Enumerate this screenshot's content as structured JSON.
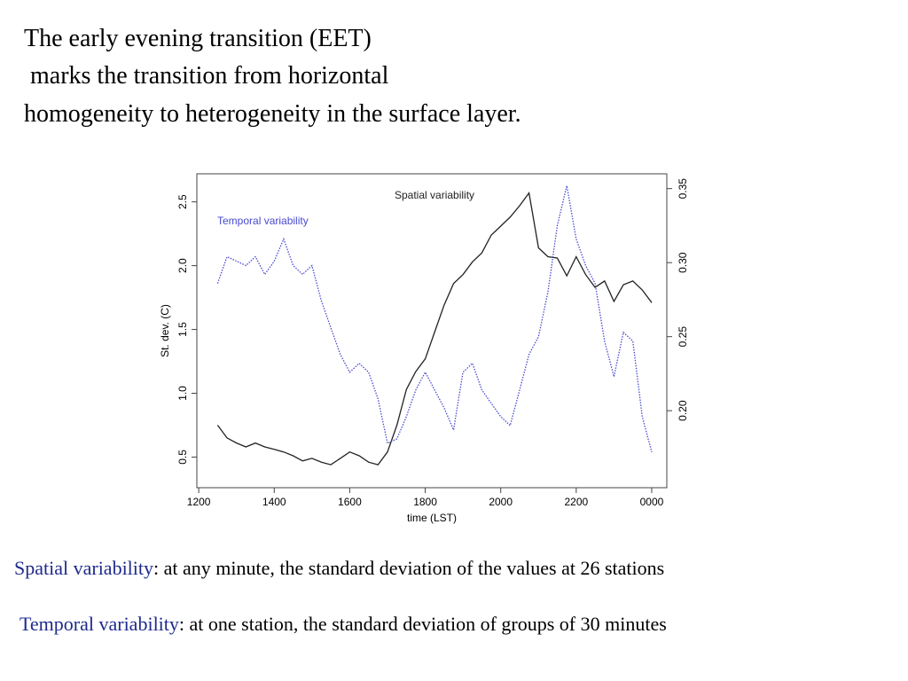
{
  "heading": [
    "The early evening transition (EET)",
    " marks the transition from horizontal",
    "homogeneity to heterogeneity in the surface layer."
  ],
  "definitions": [
    {
      "term": "Spatial variability",
      "text": ": at any minute, the standard deviation of the values at 26 stations"
    },
    {
      "term": "Temporal variability",
      "text": ": at one station, the standard deviation of groups of 30 minutes"
    }
  ],
  "chart_data": {
    "type": "line",
    "x_label": "time (LST)",
    "y_label": "St. dev. (C)",
    "annotations": [
      "Spatial variability",
      "Temporal variability"
    ],
    "x": [
      12.5,
      12.75,
      13,
      13.25,
      13.5,
      13.75,
      14,
      14.25,
      14.5,
      14.75,
      15,
      15.25,
      15.5,
      15.75,
      16,
      16.25,
      16.5,
      16.75,
      17,
      17.25,
      17.5,
      17.75,
      18,
      18.25,
      18.5,
      18.75,
      19,
      19.25,
      19.5,
      19.75,
      20,
      20.25,
      20.5,
      20.75,
      21,
      21.25,
      21.5,
      21.75,
      22,
      22.25,
      22.5,
      22.75,
      23,
      23.25,
      23.5,
      23.75,
      24
    ],
    "series": [
      {
        "name": "Spatial variability",
        "color": "#222222",
        "axis": "y",
        "values": [
          0.75,
          0.65,
          0.61,
          0.58,
          0.61,
          0.58,
          0.56,
          0.54,
          0.51,
          0.47,
          0.49,
          0.46,
          0.44,
          0.49,
          0.54,
          0.51,
          0.46,
          0.44,
          0.54,
          0.75,
          1.03,
          1.17,
          1.27,
          1.48,
          1.69,
          1.86,
          1.93,
          2.03,
          2.1,
          2.24,
          2.31,
          2.38,
          2.47,
          2.57,
          2.14,
          2.07,
          2.06,
          1.92,
          2.07,
          1.93,
          1.83,
          1.88,
          1.72,
          1.85,
          1.88,
          1.81,
          1.71
        ]
      },
      {
        "name": "Temporal variability",
        "color": "#4a4ad0",
        "axis": "y2",
        "values": [
          0.286,
          0.304,
          0.301,
          0.298,
          0.304,
          0.292,
          0.301,
          0.316,
          0.298,
          0.292,
          0.298,
          0.274,
          0.256,
          0.238,
          0.226,
          0.232,
          0.226,
          0.208,
          0.178,
          0.181,
          0.196,
          0.214,
          0.226,
          0.214,
          0.202,
          0.187,
          0.226,
          0.232,
          0.214,
          0.205,
          0.196,
          0.19,
          0.214,
          0.238,
          0.25,
          0.28,
          0.325,
          0.352,
          0.316,
          0.298,
          0.286,
          0.247,
          0.223,
          0.253,
          0.247,
          0.196,
          0.172
        ]
      }
    ],
    "xlim": [
      11.95,
      24.4
    ],
    "xticks": [
      {
        "value": 12,
        "label": "1200"
      },
      {
        "value": 14,
        "label": "1400"
      },
      {
        "value": 16,
        "label": "1600"
      },
      {
        "value": 18,
        "label": "1800"
      },
      {
        "value": 20,
        "label": "2000"
      },
      {
        "value": 22,
        "label": "2200"
      },
      {
        "value": 24,
        "label": "0000"
      }
    ],
    "ylim": [
      0.26,
      2.72
    ],
    "yticks": [
      0.5,
      {
        "value": 1,
        "label": "1.0"
      },
      1.5,
      {
        "value": 2,
        "label": "2.0"
      },
      2.5
    ],
    "y2lim": [
      0.148,
      0.36
    ],
    "y2ticks": [
      {
        "value": 0.2,
        "label": "0.20"
      },
      0.25,
      {
        "value": 0.3,
        "label": "0.30"
      },
      0.35
    ]
  }
}
